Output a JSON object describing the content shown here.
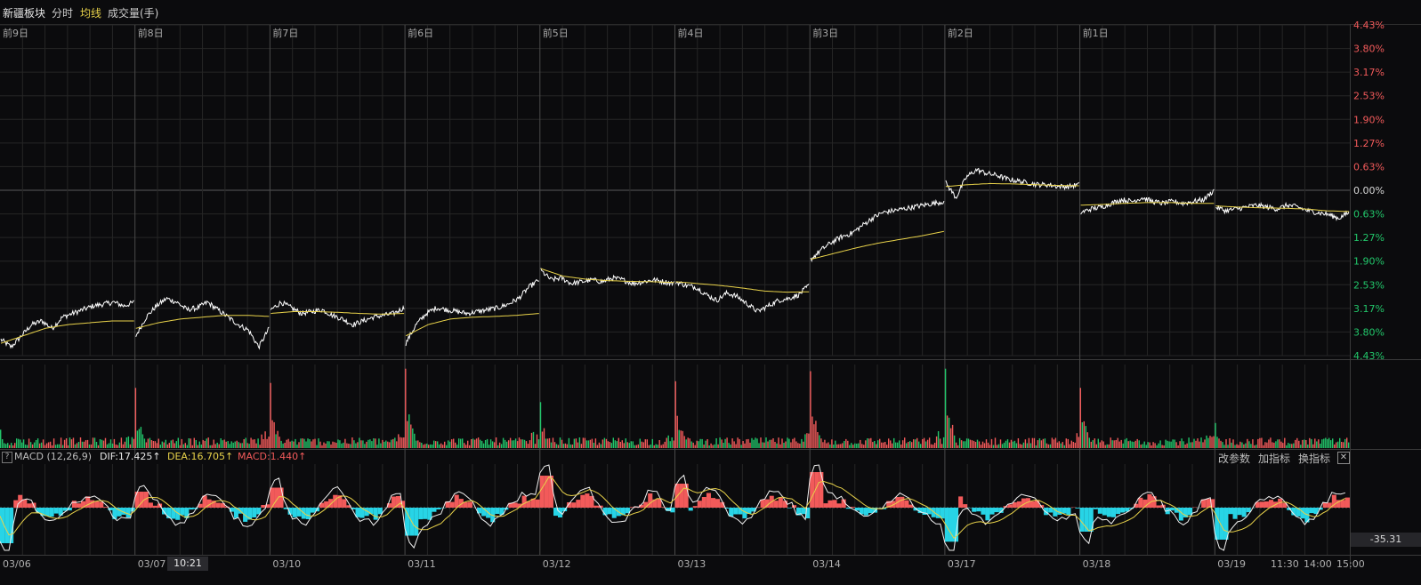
{
  "topbar": {
    "sector": "新疆板块",
    "tab_intraday": "分时",
    "tab_avgline": "均线",
    "tab_volume": "成交量(手)"
  },
  "colors": {
    "background": "#0b0b0d",
    "grid": "#262626",
    "up": "#f25a5a",
    "down": "#22c66a",
    "price_line": "#ffffff",
    "avg_line": "#e8d24a",
    "macd_down": "#27d4e6"
  },
  "chart_data": {
    "type": "line",
    "title": "",
    "day_labels": [
      "前9日",
      "前8日",
      "前7日",
      "前6日",
      "前5日",
      "前4日",
      "前3日",
      "前2日",
      "前1日"
    ],
    "dates": [
      "03/06",
      "03/07",
      "03/10",
      "03/11",
      "03/12",
      "03/13",
      "03/14",
      "03/17",
      "03/18",
      "03/19"
    ],
    "right_axis_labels": [
      "4.43%",
      "3.80%",
      "3.17%",
      "2.53%",
      "1.90%",
      "1.27%",
      "0.63%",
      "0.00%",
      "0.63%",
      "1.27%",
      "1.90%",
      "2.53%",
      "3.17%",
      "3.80%",
      "4.43%"
    ],
    "ylim_percent": [
      -4.43,
      4.43
    ],
    "price_series": [
      {
        "day": "03/06",
        "points": [
          -4.0,
          -4.2,
          -3.9,
          -3.6,
          -3.5,
          -3.7,
          -3.4,
          -3.3,
          -3.2,
          -3.1,
          -3.05,
          -3.0,
          -3.1,
          -3.0
        ]
      },
      {
        "day": "03/07",
        "points": [
          -3.9,
          -3.4,
          -3.1,
          -2.9,
          -3.0,
          -3.2,
          -3.15,
          -3.0,
          -3.2,
          -3.4,
          -3.6,
          -3.75,
          -4.2,
          -3.7
        ]
      },
      {
        "day": "03/10",
        "points": [
          -3.2,
          -3.0,
          -3.15,
          -3.3,
          -3.25,
          -3.2,
          -3.35,
          -3.45,
          -3.6,
          -3.5,
          -3.4,
          -3.35,
          -3.3,
          -3.15
        ]
      },
      {
        "day": "03/11",
        "points": [
          -4.1,
          -3.6,
          -3.3,
          -3.15,
          -3.2,
          -3.25,
          -3.3,
          -3.25,
          -3.2,
          -3.15,
          -3.05,
          -2.9,
          -2.6,
          -2.4
        ]
      },
      {
        "day": "03/12",
        "points": [
          -2.15,
          -2.4,
          -2.35,
          -2.5,
          -2.45,
          -2.4,
          -2.45,
          -2.35,
          -2.4,
          -2.5,
          -2.45,
          -2.4,
          -2.45,
          -2.5
        ]
      },
      {
        "day": "03/13",
        "points": [
          -2.45,
          -2.55,
          -2.6,
          -2.8,
          -2.95,
          -2.75,
          -2.85,
          -3.05,
          -3.25,
          -3.1,
          -2.95,
          -2.9,
          -2.8,
          -2.55
        ]
      },
      {
        "day": "03/14",
        "points": [
          -1.85,
          -1.6,
          -1.4,
          -1.25,
          -1.15,
          -0.95,
          -0.75,
          -0.6,
          -0.55,
          -0.5,
          -0.45,
          -0.4,
          -0.35,
          -0.3
        ]
      },
      {
        "day": "03/17",
        "points": [
          0.2,
          -0.2,
          0.35,
          0.55,
          0.45,
          0.4,
          0.3,
          0.25,
          0.2,
          0.15,
          0.15,
          0.1,
          0.1,
          0.15
        ]
      },
      {
        "day": "03/18",
        "points": [
          -0.6,
          -0.5,
          -0.45,
          -0.35,
          -0.25,
          -0.3,
          -0.2,
          -0.3,
          -0.35,
          -0.3,
          -0.35,
          -0.3,
          -0.25,
          0.0
        ]
      },
      {
        "day": "03/19",
        "points": [
          -0.45,
          -0.55,
          -0.5,
          -0.45,
          -0.4,
          -0.45,
          -0.5,
          -0.4,
          -0.45,
          -0.55,
          -0.6,
          -0.65,
          -0.75,
          -0.6
        ]
      }
    ],
    "avg_series": [
      {
        "day": "03/06",
        "points": [
          -4.1,
          -3.9,
          -3.7,
          -3.6,
          -3.55,
          -3.5,
          -3.5
        ]
      },
      {
        "day": "03/07",
        "points": [
          -3.7,
          -3.55,
          -3.45,
          -3.4,
          -3.35,
          -3.35,
          -3.38
        ]
      },
      {
        "day": "03/10",
        "points": [
          -3.3,
          -3.25,
          -3.25,
          -3.27,
          -3.3,
          -3.32,
          -3.3
        ]
      },
      {
        "day": "03/11",
        "points": [
          -3.9,
          -3.6,
          -3.45,
          -3.4,
          -3.38,
          -3.35,
          -3.3
        ]
      },
      {
        "day": "03/12",
        "points": [
          -2.1,
          -2.3,
          -2.38,
          -2.42,
          -2.44,
          -2.45,
          -2.47
        ]
      },
      {
        "day": "03/13",
        "points": [
          -2.45,
          -2.5,
          -2.55,
          -2.62,
          -2.7,
          -2.73,
          -2.72
        ]
      },
      {
        "day": "03/14",
        "points": [
          -1.85,
          -1.7,
          -1.55,
          -1.42,
          -1.32,
          -1.22,
          -1.1
        ]
      },
      {
        "day": "03/17",
        "points": [
          0.1,
          0.15,
          0.18,
          0.17,
          0.15,
          0.13,
          0.12
        ]
      },
      {
        "day": "03/18",
        "points": [
          -0.4,
          -0.38,
          -0.35,
          -0.33,
          -0.33,
          -0.35,
          -0.35
        ]
      },
      {
        "day": "03/19",
        "points": [
          -0.42,
          -0.45,
          -0.47,
          -0.48,
          -0.5,
          -0.55,
          -0.57
        ]
      }
    ],
    "volume_spikes": [
      0.22,
      0.72,
      0.78,
      0.95,
      0.55,
      0.8,
      0.92,
      0.95,
      0.72,
      0.3
    ],
    "macd_histogram_profile": [
      -0.9,
      0.4,
      0.5,
      -0.7,
      0.8,
      0.6,
      0.9,
      -0.85,
      -0.6,
      -0.8
    ]
  },
  "macd": {
    "help_icon": "?",
    "title": "MACD (12,26,9)",
    "dif": "DIF:17.425↑",
    "dea": "DEA:16.705↑",
    "macd": "MACD:1.440↑",
    "value_label": "-35.31"
  },
  "buttons": {
    "change_params": "改参数",
    "add_indicator": "加指标",
    "switch_indicator": "换指标",
    "close_icon": "✕"
  },
  "time_axis": {
    "cursor_time": "10:21",
    "extra_times": [
      "11:30",
      "14:00",
      "15:00"
    ]
  }
}
